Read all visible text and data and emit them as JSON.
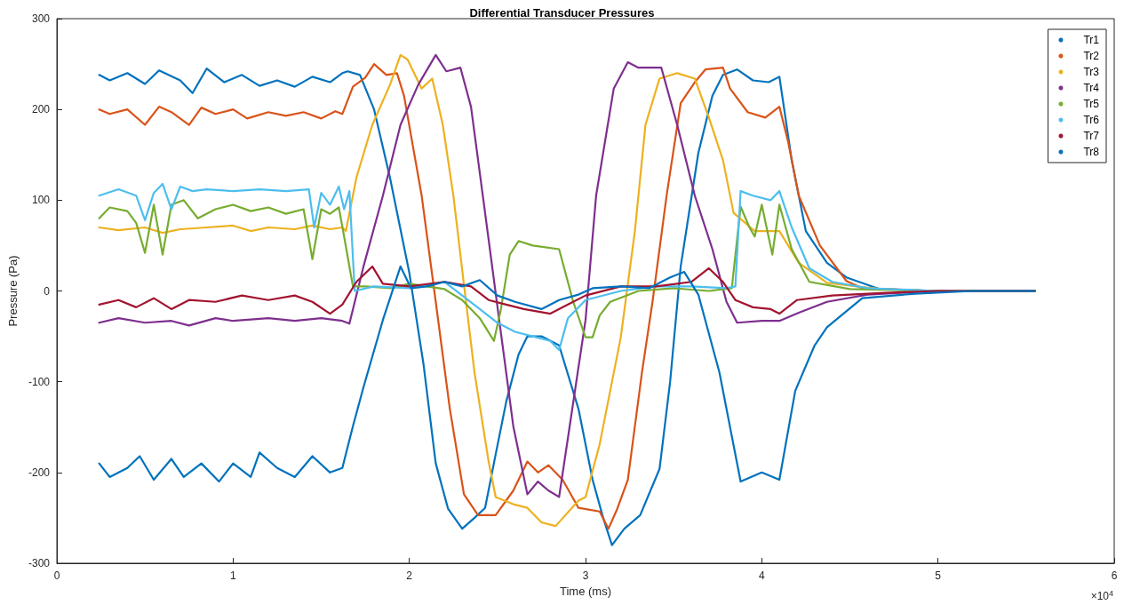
{
  "chart_data": {
    "type": "line",
    "title": "Differential Transducer Pressures",
    "xlabel": "Time (ms)",
    "ylabel": "Pressure (Pa)",
    "annotations": [
      "×10$^{4}$"
    ],
    "xlim": [
      0,
      6
    ],
    "xticks": [
      0,
      1,
      2,
      3,
      4,
      5,
      6
    ],
    "ylim": [
      -300,
      300
    ],
    "yticks": [
      -300,
      -200,
      -100,
      0,
      100,
      200,
      300
    ],
    "grid": false,
    "legend": "top right",
    "line_style": "solid",
    "series": [
      {
        "name": "Tr1",
        "color": "#0072bd",
        "x": [
          0.24,
          0.3,
          0.4,
          0.5,
          0.58,
          0.7,
          0.77,
          0.85,
          0.95,
          1.05,
          1.15,
          1.25,
          1.35,
          1.45,
          1.55,
          1.62,
          1.65,
          1.72,
          1.8,
          1.89,
          2.0,
          2.08,
          2.15,
          2.22,
          2.3,
          2.37,
          2.43,
          2.49,
          2.55,
          2.62,
          2.67,
          2.75,
          2.85,
          2.96,
          3.04,
          3.1,
          3.15,
          3.22,
          3.31,
          3.42,
          3.48,
          3.54,
          3.64,
          3.72,
          3.78,
          3.86,
          3.95,
          4.04,
          4.1,
          4.17,
          4.25,
          4.37,
          4.48,
          4.67,
          5.0,
          5.55
        ],
        "values": [
          238,
          232,
          240,
          228,
          243,
          232,
          218,
          245,
          230,
          238,
          226,
          232,
          225,
          236,
          230,
          240,
          242,
          238,
          200,
          125,
          20,
          -80,
          -190,
          -240,
          -262,
          -250,
          -239,
          -180,
          -122,
          -70,
          -50,
          -50,
          -60,
          -130,
          -208,
          -250,
          -280,
          -262,
          -247,
          -196,
          -100,
          27,
          152,
          215,
          238,
          244,
          232,
          230,
          236,
          144,
          66,
          31,
          15,
          2,
          0,
          0
        ]
      },
      {
        "name": "Tr2",
        "color": "#d95319",
        "x": [
          0.24,
          0.3,
          0.4,
          0.5,
          0.58,
          0.65,
          0.75,
          0.82,
          0.9,
          1.0,
          1.08,
          1.2,
          1.3,
          1.4,
          1.5,
          1.58,
          1.62,
          1.68,
          1.75,
          1.8,
          1.87,
          1.93,
          1.97,
          2.07,
          2.15,
          2.23,
          2.31,
          2.39,
          2.49,
          2.59,
          2.67,
          2.73,
          2.79,
          2.87,
          2.96,
          3.08,
          3.13,
          3.18,
          3.24,
          3.32,
          3.38,
          3.46,
          3.54,
          3.62,
          3.68,
          3.78,
          3.82,
          3.92,
          4.02,
          4.1,
          4.15,
          4.21,
          4.33,
          4.48,
          4.57,
          5.0,
          5.55
        ],
        "values": [
          200,
          195,
          200,
          183,
          203,
          197,
          183,
          202,
          195,
          200,
          190,
          197,
          193,
          197,
          190,
          198,
          195,
          225,
          235,
          250,
          238,
          240,
          215,
          105,
          -12,
          -130,
          -224,
          -247,
          -247,
          -220,
          -188,
          -200,
          -192,
          -208,
          -239,
          -243,
          -262,
          -240,
          -208,
          -90,
          -12,
          105,
          207,
          230,
          244,
          246,
          223,
          197,
          191,
          203,
          164,
          105,
          50,
          11,
          3,
          0,
          0
        ]
      },
      {
        "name": "Tr3",
        "color": "#edb120",
        "x": [
          0.24,
          0.35,
          0.5,
          0.6,
          0.7,
          0.85,
          1.0,
          1.1,
          1.2,
          1.35,
          1.45,
          1.55,
          1.62,
          1.64,
          1.7,
          1.79,
          1.89,
          1.95,
          1.99,
          2.07,
          2.13,
          2.19,
          2.25,
          2.31,
          2.37,
          2.45,
          2.49,
          2.59,
          2.67,
          2.75,
          2.83,
          2.96,
          3.0,
          3.08,
          3.2,
          3.28,
          3.34,
          3.42,
          3.52,
          3.62,
          3.7,
          3.78,
          3.84,
          3.96,
          4.1,
          4.21,
          4.37,
          4.67,
          5.0,
          5.55
        ],
        "values": [
          70,
          67,
          70,
          64,
          68,
          70,
          72,
          66,
          70,
          68,
          72,
          68,
          70,
          66,
          125,
          183,
          227,
          260,
          255,
          223,
          234,
          183,
          105,
          7,
          -90,
          -188,
          -227,
          -235,
          -239,
          -255,
          -259,
          -231,
          -227,
          -169,
          -51,
          66,
          183,
          234,
          240,
          234,
          191,
          144,
          86,
          66,
          66,
          31,
          9,
          2,
          0,
          0
        ]
      },
      {
        "name": "Tr4",
        "color": "#7e2f8e",
        "x": [
          0.24,
          0.35,
          0.5,
          0.65,
          0.75,
          0.9,
          1.0,
          1.2,
          1.35,
          1.5,
          1.62,
          1.66,
          1.74,
          1.85,
          1.95,
          2.05,
          2.15,
          2.21,
          2.29,
          2.35,
          2.43,
          2.51,
          2.59,
          2.67,
          2.73,
          2.79,
          2.85,
          2.91,
          3.0,
          3.06,
          3.16,
          3.24,
          3.3,
          3.43,
          3.52,
          3.62,
          3.72,
          3.8,
          3.86,
          4.0,
          4.1,
          4.21,
          4.37,
          4.6,
          5.0,
          5.55
        ],
        "values": [
          -35,
          -30,
          -35,
          -33,
          -38,
          -30,
          -33,
          -30,
          -33,
          -30,
          -33,
          -36,
          27,
          105,
          183,
          227,
          260,
          242,
          246,
          203,
          86,
          -32,
          -149,
          -224,
          -210,
          -220,
          -227,
          -149,
          -32,
          105,
          223,
          252,
          246,
          246,
          183,
          105,
          46,
          -12,
          -35,
          -33,
          -33,
          -24,
          -12,
          -4,
          0,
          0
        ]
      },
      {
        "name": "Tr5",
        "color": "#77ac30",
        "x": [
          0.24,
          0.3,
          0.4,
          0.45,
          0.5,
          0.55,
          0.6,
          0.65,
          0.72,
          0.8,
          0.9,
          1.0,
          1.1,
          1.2,
          1.3,
          1.4,
          1.45,
          1.5,
          1.55,
          1.6,
          1.63,
          1.68,
          1.75,
          1.9,
          2.0,
          2.1,
          2.2,
          2.3,
          2.4,
          2.48,
          2.52,
          2.57,
          2.62,
          2.7,
          2.85,
          2.93,
          3.0,
          3.04,
          3.08,
          3.14,
          3.3,
          3.5,
          3.7,
          3.83,
          3.88,
          3.93,
          3.96,
          4.0,
          4.06,
          4.1,
          4.17,
          4.27,
          4.5,
          5.0,
          5.55
        ],
        "values": [
          80,
          92,
          88,
          75,
          42,
          95,
          40,
          95,
          100,
          80,
          90,
          95,
          88,
          92,
          85,
          90,
          35,
          90,
          85,
          92,
          60,
          5,
          5,
          3,
          8,
          5,
          2,
          -10,
          -30,
          -55,
          -20,
          40,
          55,
          50,
          46,
          -12,
          -51,
          -51,
          -27,
          -12,
          0,
          3,
          0,
          3,
          93,
          70,
          60,
          95,
          40,
          95,
          46,
          10,
          2,
          0,
          0
        ]
      },
      {
        "name": "Tr6",
        "color": "#4dbeee",
        "x": [
          0.24,
          0.35,
          0.45,
          0.5,
          0.55,
          0.6,
          0.65,
          0.7,
          0.77,
          0.85,
          1.0,
          1.15,
          1.3,
          1.43,
          1.46,
          1.5,
          1.55,
          1.6,
          1.63,
          1.66,
          1.69,
          1.8,
          2.0,
          2.2,
          2.3,
          2.4,
          2.5,
          2.6,
          2.7,
          2.8,
          2.85,
          2.9,
          3.0,
          3.2,
          3.4,
          3.6,
          3.8,
          3.85,
          3.88,
          3.95,
          4.05,
          4.1,
          4.17,
          4.27,
          4.4,
          4.6,
          5.0,
          5.55
        ],
        "values": [
          105,
          112,
          105,
          78,
          108,
          118,
          90,
          115,
          110,
          112,
          110,
          112,
          110,
          112,
          70,
          108,
          95,
          115,
          90,
          110,
          0,
          5,
          3,
          10,
          -5,
          -20,
          -35,
          -45,
          -50,
          -55,
          -65,
          -30,
          -10,
          0,
          5,
          5,
          3,
          5,
          110,
          105,
          100,
          110,
          70,
          25,
          10,
          3,
          0,
          0
        ]
      },
      {
        "name": "Tr7",
        "color": "#a2142f",
        "x": [
          0.24,
          0.35,
          0.45,
          0.55,
          0.65,
          0.75,
          0.9,
          1.05,
          1.2,
          1.35,
          1.45,
          1.55,
          1.62,
          1.7,
          1.79,
          1.85,
          2.0,
          2.2,
          2.35,
          2.45,
          2.55,
          2.65,
          2.8,
          2.9,
          3.0,
          3.2,
          3.4,
          3.6,
          3.7,
          3.78,
          3.85,
          3.95,
          4.05,
          4.1,
          4.2,
          4.4,
          4.7,
          5.0,
          5.55
        ],
        "values": [
          -15,
          -10,
          -18,
          -8,
          -20,
          -10,
          -12,
          -5,
          -10,
          -5,
          -12,
          -25,
          -15,
          10,
          27,
          8,
          5,
          10,
          5,
          -10,
          -15,
          -20,
          -25,
          -15,
          -5,
          5,
          5,
          10,
          25,
          10,
          -10,
          -18,
          -20,
          -25,
          -10,
          -5,
          -2,
          0,
          0
        ]
      },
      {
        "name": "Tr8",
        "color": "#0072bd",
        "x": [
          0.24,
          0.3,
          0.4,
          0.47,
          0.55,
          0.65,
          0.72,
          0.82,
          0.92,
          1.0,
          1.1,
          1.15,
          1.25,
          1.35,
          1.45,
          1.55,
          1.62,
          1.68,
          1.74,
          1.85,
          1.95,
          2.01,
          2.1,
          2.2,
          2.3,
          2.4,
          2.5,
          2.6,
          2.75,
          2.85,
          2.96,
          3.04,
          3.2,
          3.36,
          3.48,
          3.56,
          3.64,
          3.76,
          3.88,
          4.0,
          4.1,
          4.19,
          4.3,
          4.37,
          4.57,
          4.87,
          5.2,
          5.55
        ],
        "values": [
          -190,
          -205,
          -195,
          -182,
          -208,
          -185,
          -205,
          -190,
          -210,
          -190,
          -205,
          -178,
          -195,
          -205,
          -182,
          -200,
          -195,
          -149,
          -106,
          -32,
          27,
          3,
          5,
          10,
          5,
          12,
          -5,
          -12,
          -20,
          -10,
          -4,
          3,
          5,
          3,
          15,
          21,
          -4,
          -90,
          -210,
          -200,
          -208,
          -110,
          -60,
          -40,
          -8,
          -3,
          0,
          0
        ]
      }
    ]
  }
}
